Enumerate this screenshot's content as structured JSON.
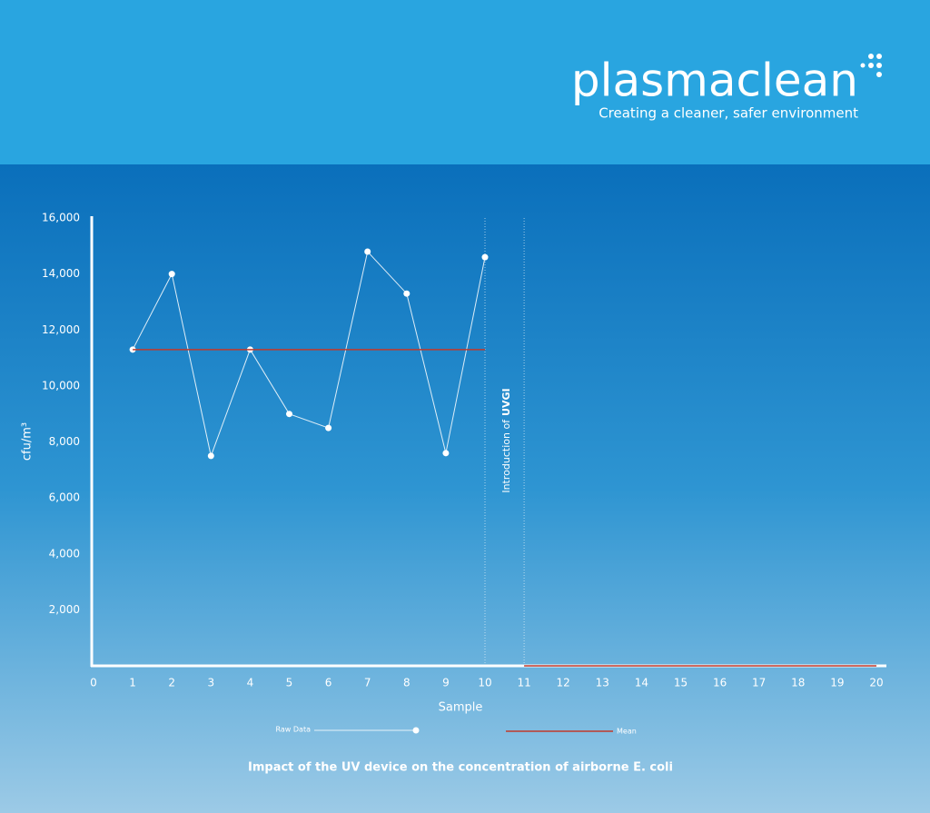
{
  "header": {
    "logo": "plasmaclean",
    "tagline": "Creating a cleaner, safer environment"
  },
  "chart_data": {
    "type": "line",
    "title": "Impact of the UV device on the concentration of airborne E. coli",
    "x_label": "Sample",
    "y_label": "cfu/m³",
    "xlim": [
      0,
      20
    ],
    "xticks": [
      0,
      1,
      2,
      3,
      4,
      5,
      6,
      7,
      8,
      9,
      10,
      11,
      12,
      13,
      14,
      15,
      16,
      17,
      18,
      19,
      20
    ],
    "ylim": [
      0,
      16000
    ],
    "yticks": [
      {
        "value": 2000,
        "label": "2,000"
      },
      {
        "value": 4000,
        "label": "4,000"
      },
      {
        "value": 6000,
        "label": "6,000"
      },
      {
        "value": 8000,
        "label": "8,000"
      },
      {
        "value": 10000,
        "label": "10,000"
      },
      {
        "value": 12000,
        "label": "12,000"
      },
      {
        "value": 14000,
        "label": "14,000"
      },
      {
        "value": 16000,
        "label": "16,000"
      }
    ],
    "series": [
      {
        "name": "Raw Data",
        "color": "#ffffff",
        "x": [
          1,
          2,
          3,
          4,
          5,
          6,
          7,
          8,
          9,
          10
        ],
        "values": [
          11300,
          14000,
          7500,
          11300,
          9000,
          8500,
          14800,
          13300,
          7600,
          14600
        ]
      },
      {
        "name": "Mean",
        "color": "#c0392b",
        "segments": [
          {
            "x": [
              1,
              10
            ],
            "values": [
              11300,
              11300
            ]
          },
          {
            "x": [
              11,
              20
            ],
            "values": [
              0,
              0
            ]
          }
        ]
      }
    ],
    "annotation": {
      "text": "Introduction of",
      "emphasis": "UVGI",
      "x": [
        10,
        11
      ]
    }
  }
}
